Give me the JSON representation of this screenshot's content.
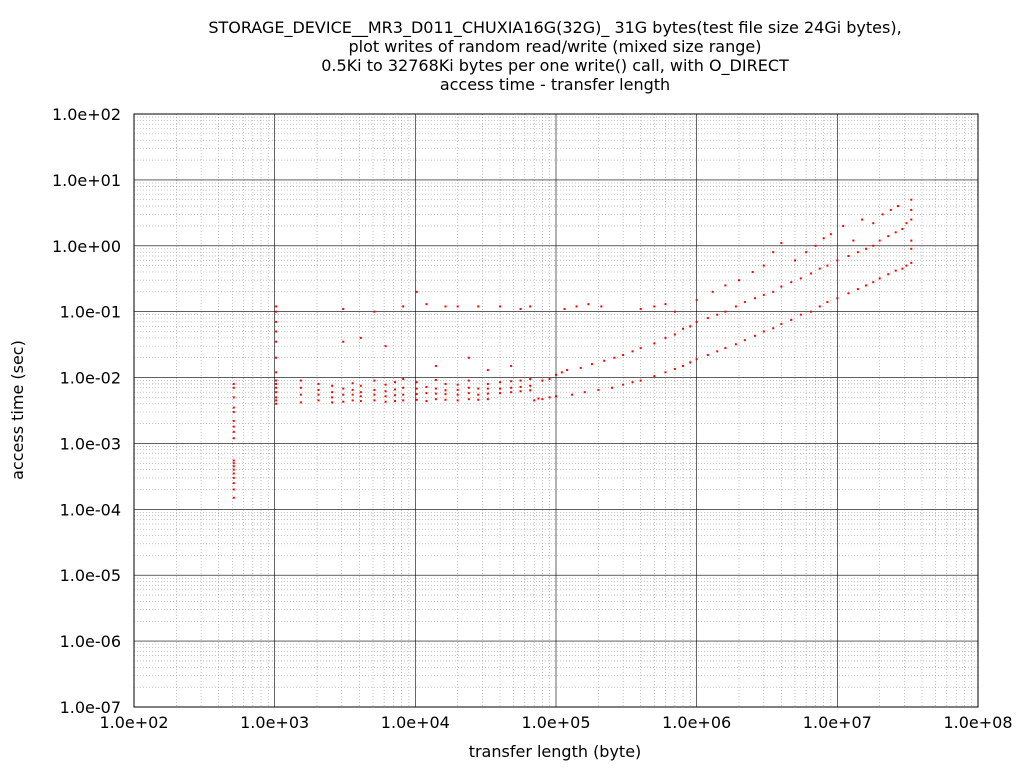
{
  "chart_data": {
    "type": "scatter",
    "title_lines": [
      "STORAGE_DEVICE__MR3_D011_CHUXIA16G(32G)_ 31G bytes(test file size 24Gi bytes),",
      "plot writes of random read/write (mixed size range)",
      "0.5Ki to 32768Ki bytes per one write() call, with O_DIRECT",
      "access time - transfer length"
    ],
    "xlabel": "transfer length (byte)",
    "ylabel": "access time (sec)",
    "x_scale": "log",
    "y_scale": "log",
    "xlim": [
      100,
      100000000
    ],
    "ylim": [
      1e-07,
      100
    ],
    "x_ticks": [
      {
        "value": 100,
        "label": "1.0e+02"
      },
      {
        "value": 1000,
        "label": "1.0e+03"
      },
      {
        "value": 10000,
        "label": "1.0e+04"
      },
      {
        "value": 100000,
        "label": "1.0e+05"
      },
      {
        "value": 1000000,
        "label": "1.0e+06"
      },
      {
        "value": 10000000,
        "label": "1.0e+07"
      },
      {
        "value": 100000000,
        "label": "1.0e+08"
      }
    ],
    "y_ticks": [
      {
        "value": 1e-07,
        "label": "1.0e-07"
      },
      {
        "value": 1e-06,
        "label": "1.0e-06"
      },
      {
        "value": 1e-05,
        "label": "1.0e-05"
      },
      {
        "value": 0.0001,
        "label": "1.0e-04"
      },
      {
        "value": 0.001,
        "label": "1.0e-03"
      },
      {
        "value": 0.01,
        "label": "1.0e-02"
      },
      {
        "value": 0.1,
        "label": "1.0e-01"
      },
      {
        "value": 1,
        "label": "1.0e+00"
      },
      {
        "value": 10,
        "label": "1.0e+01"
      },
      {
        "value": 100,
        "label": "1.0e+02"
      }
    ],
    "grid": true,
    "minor_grid": true,
    "series": [
      {
        "color": "#ff0000",
        "points": [
          [
            512,
            0.00015
          ],
          [
            512,
            0.0002
          ],
          [
            512,
            0.00025
          ],
          [
            512,
            0.0003
          ],
          [
            512,
            0.00035
          ],
          [
            512,
            0.0004
          ],
          [
            512,
            0.00045
          ],
          [
            512,
            0.0005
          ],
          [
            512,
            0.00055
          ],
          [
            512,
            0.0012
          ],
          [
            512,
            0.0015
          ],
          [
            512,
            0.0018
          ],
          [
            512,
            0.0022
          ],
          [
            512,
            0.003
          ],
          [
            512,
            0.0035
          ],
          [
            512,
            0.005
          ],
          [
            512,
            0.007
          ],
          [
            512,
            0.008
          ],
          [
            1024,
            0.004
          ],
          [
            1024,
            0.0045
          ],
          [
            1024,
            0.005
          ],
          [
            1024,
            0.006
          ],
          [
            1024,
            0.007
          ],
          [
            1024,
            0.008
          ],
          [
            1024,
            0.009
          ],
          [
            1024,
            0.012
          ],
          [
            1024,
            0.02
          ],
          [
            1024,
            0.035
          ],
          [
            1024,
            0.05
          ],
          [
            1024,
            0.07
          ],
          [
            1024,
            0.1
          ],
          [
            1024,
            0.12
          ],
          [
            1536,
            0.0042
          ],
          [
            1536,
            0.0055
          ],
          [
            1536,
            0.007
          ],
          [
            1536,
            0.009
          ],
          [
            2048,
            0.0045
          ],
          [
            2048,
            0.0055
          ],
          [
            2048,
            0.0065
          ],
          [
            2048,
            0.008
          ],
          [
            2560,
            0.0042
          ],
          [
            2560,
            0.005
          ],
          [
            2560,
            0.006
          ],
          [
            2560,
            0.0075
          ],
          [
            3072,
            0.0043
          ],
          [
            3072,
            0.0055
          ],
          [
            3072,
            0.0068
          ],
          [
            3072,
            0.035
          ],
          [
            3072,
            0.11
          ],
          [
            3584,
            0.0045
          ],
          [
            3584,
            0.0055
          ],
          [
            3584,
            0.0065
          ],
          [
            3584,
            0.0082
          ],
          [
            4096,
            0.0044
          ],
          [
            4096,
            0.0052
          ],
          [
            4096,
            0.006
          ],
          [
            4096,
            0.0075
          ],
          [
            4096,
            0.04
          ],
          [
            5120,
            0.0045
          ],
          [
            5120,
            0.0055
          ],
          [
            5120,
            0.0065
          ],
          [
            5120,
            0.009
          ],
          [
            5120,
            0.1
          ],
          [
            6144,
            0.0043
          ],
          [
            6144,
            0.0052
          ],
          [
            6144,
            0.0062
          ],
          [
            6144,
            0.0078
          ],
          [
            6144,
            0.03
          ],
          [
            7168,
            0.0044
          ],
          [
            7168,
            0.0054
          ],
          [
            7168,
            0.0066
          ],
          [
            7168,
            0.0085
          ],
          [
            8192,
            0.0045
          ],
          [
            8192,
            0.0055
          ],
          [
            8192,
            0.007
          ],
          [
            8192,
            0.0095
          ],
          [
            8192,
            0.12
          ],
          [
            10240,
            0.0046
          ],
          [
            10240,
            0.0056
          ],
          [
            10240,
            0.0068
          ],
          [
            10240,
            0.0085
          ],
          [
            10240,
            0.2
          ],
          [
            12000,
            0.0044
          ],
          [
            12000,
            0.0058
          ],
          [
            12000,
            0.0072
          ],
          [
            12000,
            0.13
          ],
          [
            14000,
            0.0047
          ],
          [
            14000,
            0.0057
          ],
          [
            14000,
            0.0068
          ],
          [
            14000,
            0.0092
          ],
          [
            14000,
            0.015
          ],
          [
            16384,
            0.0046
          ],
          [
            16384,
            0.0056
          ],
          [
            16384,
            0.0064
          ],
          [
            16384,
            0.008
          ],
          [
            16384,
            0.12
          ],
          [
            20000,
            0.0045
          ],
          [
            20000,
            0.0055
          ],
          [
            20000,
            0.0065
          ],
          [
            20000,
            0.0078
          ],
          [
            20000,
            0.12
          ],
          [
            24000,
            0.0047
          ],
          [
            24000,
            0.0058
          ],
          [
            24000,
            0.007
          ],
          [
            24000,
            0.009
          ],
          [
            24000,
            0.02
          ],
          [
            28000,
            0.0046
          ],
          [
            28000,
            0.0055
          ],
          [
            28000,
            0.0068
          ],
          [
            28000,
            0.12
          ],
          [
            32768,
            0.0047
          ],
          [
            32768,
            0.0057
          ],
          [
            32768,
            0.0068
          ],
          [
            32768,
            0.008
          ],
          [
            32768,
            0.013
          ],
          [
            40000,
            0.0058
          ],
          [
            40000,
            0.0068
          ],
          [
            40000,
            0.0085
          ],
          [
            40000,
            0.12
          ],
          [
            48000,
            0.006
          ],
          [
            48000,
            0.007
          ],
          [
            48000,
            0.0088
          ],
          [
            48000,
            0.015
          ],
          [
            56000,
            0.0062
          ],
          [
            56000,
            0.0072
          ],
          [
            56000,
            0.009
          ],
          [
            56000,
            0.11
          ],
          [
            65536,
            0.0064
          ],
          [
            65536,
            0.0075
          ],
          [
            65536,
            0.0095
          ],
          [
            65536,
            0.12
          ],
          [
            70000,
            0.0045
          ],
          [
            75000,
            0.0048
          ],
          [
            80000,
            0.0047
          ],
          [
            90000,
            0.005
          ],
          [
            100000,
            0.0052
          ],
          [
            80000,
            0.009
          ],
          [
            90000,
            0.0095
          ],
          [
            100000,
            0.011
          ],
          [
            110000,
            0.012
          ],
          [
            120000,
            0.013
          ],
          [
            115000,
            0.11
          ],
          [
            140000,
            0.12
          ],
          [
            170000,
            0.13
          ],
          [
            210000,
            0.12
          ],
          [
            130000,
            0.0055
          ],
          [
            160000,
            0.006
          ],
          [
            200000,
            0.0065
          ],
          [
            250000,
            0.007
          ],
          [
            300000,
            0.0078
          ],
          [
            150000,
            0.014
          ],
          [
            180000,
            0.016
          ],
          [
            220000,
            0.018
          ],
          [
            260000,
            0.02
          ],
          [
            300000,
            0.022
          ],
          [
            350000,
            0.0085
          ],
          [
            400000,
            0.009
          ],
          [
            500000,
            0.0105
          ],
          [
            600000,
            0.012
          ],
          [
            700000,
            0.0135
          ],
          [
            350000,
            0.025
          ],
          [
            400000,
            0.028
          ],
          [
            500000,
            0.033
          ],
          [
            600000,
            0.04
          ],
          [
            700000,
            0.045
          ],
          [
            400000,
            0.11
          ],
          [
            500000,
            0.12
          ],
          [
            600000,
            0.13
          ],
          [
            700000,
            0.1
          ],
          [
            800000,
            0.015
          ],
          [
            900000,
            0.017
          ],
          [
            1000000,
            0.019
          ],
          [
            1200000,
            0.022
          ],
          [
            1400000,
            0.025
          ],
          [
            800000,
            0.055
          ],
          [
            900000,
            0.06
          ],
          [
            1000000,
            0.07
          ],
          [
            1200000,
            0.08
          ],
          [
            1400000,
            0.09
          ],
          [
            1000000,
            0.15
          ],
          [
            1300000,
            0.2
          ],
          [
            1600000,
            0.25
          ],
          [
            1600000,
            0.028
          ],
          [
            1900000,
            0.032
          ],
          [
            2200000,
            0.037
          ],
          [
            2600000,
            0.043
          ],
          [
            3000000,
            0.05
          ],
          [
            1600000,
            0.1
          ],
          [
            1900000,
            0.12
          ],
          [
            2200000,
            0.14
          ],
          [
            2600000,
            0.16
          ],
          [
            3000000,
            0.18
          ],
          [
            2000000,
            0.3
          ],
          [
            2500000,
            0.4
          ],
          [
            3000000,
            0.5
          ],
          [
            3500000,
            0.8
          ],
          [
            4000000,
            1.1
          ],
          [
            3500000,
            0.056
          ],
          [
            4000000,
            0.065
          ],
          [
            4700000,
            0.075
          ],
          [
            5500000,
            0.09
          ],
          [
            6500000,
            0.1
          ],
          [
            3500000,
            0.2
          ],
          [
            4000000,
            0.24
          ],
          [
            4700000,
            0.28
          ],
          [
            5500000,
            0.32
          ],
          [
            6500000,
            0.38
          ],
          [
            5000000,
            0.6
          ],
          [
            6000000,
            0.8
          ],
          [
            7000000,
            1.0
          ],
          [
            8000000,
            1.3
          ],
          [
            7500000,
            0.12
          ],
          [
            8500000,
            0.14
          ],
          [
            10000000,
            0.16
          ],
          [
            12000000,
            0.19
          ],
          [
            14000000,
            0.22
          ],
          [
            7500000,
            0.45
          ],
          [
            8500000,
            0.5
          ],
          [
            10000000,
            0.6
          ],
          [
            12000000,
            0.7
          ],
          [
            14000000,
            0.8
          ],
          [
            9000000,
            1.5
          ],
          [
            11000000,
            2.0
          ],
          [
            13000000,
            1.2
          ],
          [
            15000000,
            2.5
          ],
          [
            16000000,
            0.25
          ],
          [
            18000000,
            0.28
          ],
          [
            20000000,
            0.32
          ],
          [
            23000000,
            0.37
          ],
          [
            26000000,
            0.42
          ],
          [
            16000000,
            0.9
          ],
          [
            18000000,
            1.0
          ],
          [
            20000000,
            1.2
          ],
          [
            23000000,
            1.4
          ],
          [
            26000000,
            1.6
          ],
          [
            18000000,
            2.2
          ],
          [
            21000000,
            3.0
          ],
          [
            24000000,
            3.5
          ],
          [
            27000000,
            4.0
          ],
          [
            29000000,
            0.45
          ],
          [
            31000000,
            0.5
          ],
          [
            33554432,
            0.55
          ],
          [
            29000000,
            1.8
          ],
          [
            31000000,
            2.2
          ],
          [
            33554432,
            2.5
          ],
          [
            33554432,
            3.5
          ],
          [
            33554432,
            5.0
          ],
          [
            33554432,
            1.2
          ],
          [
            33554432,
            0.9
          ]
        ]
      }
    ]
  }
}
